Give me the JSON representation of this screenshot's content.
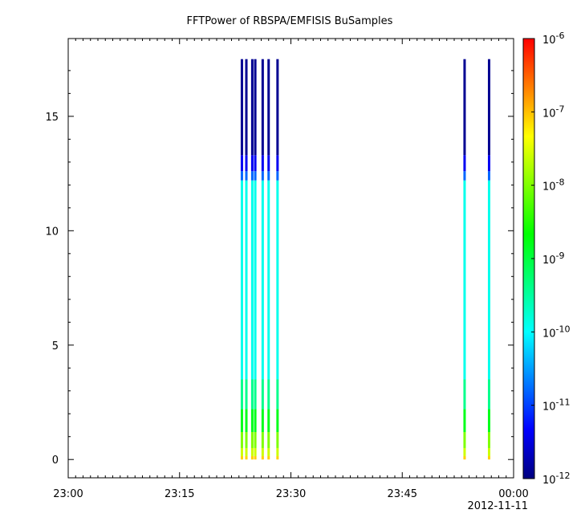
{
  "chart_data": {
    "type": "heatmap",
    "title": "FFTPower of RBSPA/EMFISIS  BuSamples",
    "xlabel": "",
    "ylabel": "",
    "x_ticks": [
      "23:00",
      "23:15",
      "23:30",
      "23:45",
      "00:00"
    ],
    "x_date_label": "2012-11-11",
    "x_range_minutes": [
      0,
      60
    ],
    "y_ticks": [
      0,
      5,
      10,
      15
    ],
    "ylim": [
      -0.8,
      18.4
    ],
    "colorbar": {
      "scale": "log",
      "range": [
        1e-12,
        1e-06
      ],
      "ticks": [
        {
          "base": "10",
          "exp": "-6",
          "value": 1e-06
        },
        {
          "base": "10",
          "exp": "-7",
          "value": 1e-07
        },
        {
          "base": "10",
          "exp": "-8",
          "value": 1e-08
        },
        {
          "base": "10",
          "exp": "-9",
          "value": 1e-09
        },
        {
          "base": "10",
          "exp": "-10",
          "value": 1e-10
        },
        {
          "base": "10",
          "exp": "-11",
          "value": 1e-11
        },
        {
          "base": "10",
          "exp": "-12",
          "value": 1e-12
        }
      ],
      "colormap": [
        "#00007f",
        "#0000ff",
        "#007fff",
        "#00ffff",
        "#00ff7f",
        "#00ff00",
        "#7fff00",
        "#ffff00",
        "#ff7f00",
        "#ff0000"
      ]
    },
    "y_max": 17.5,
    "bursts": [
      {
        "time": "23:23.4",
        "minute": 23.4
      },
      {
        "time": "23:24.0",
        "minute": 24.0
      },
      {
        "time": "23:24.8",
        "minute": 24.8
      },
      {
        "time": "23:25.2",
        "minute": 25.2
      },
      {
        "time": "23:26.2",
        "minute": 26.2
      },
      {
        "time": "23:27.0",
        "minute": 27.0
      },
      {
        "time": "23:28.2",
        "minute": 28.2
      },
      {
        "time": "23:53.4",
        "minute": 53.4
      },
      {
        "time": "23:56.7",
        "minute": 56.7
      }
    ],
    "power_profile": [
      {
        "y_from": 0.0,
        "y_to": 0.15,
        "log_power": -7.1
      },
      {
        "y_from": 0.15,
        "y_to": 0.5,
        "log_power": -7.6
      },
      {
        "y_from": 0.5,
        "y_to": 1.2,
        "log_power": -8.0
      },
      {
        "y_from": 1.2,
        "y_to": 2.2,
        "log_power": -8.8
      },
      {
        "y_from": 2.2,
        "y_to": 3.5,
        "log_power": -9.4
      },
      {
        "y_from": 3.5,
        "y_to": 12.2,
        "log_power": -9.9
      },
      {
        "y_from": 12.2,
        "y_to": 12.6,
        "log_power": -10.8
      },
      {
        "y_from": 12.6,
        "y_to": 13.3,
        "log_power": -11.4
      },
      {
        "y_from": 13.3,
        "y_to": 17.5,
        "log_power": -11.9
      }
    ]
  }
}
